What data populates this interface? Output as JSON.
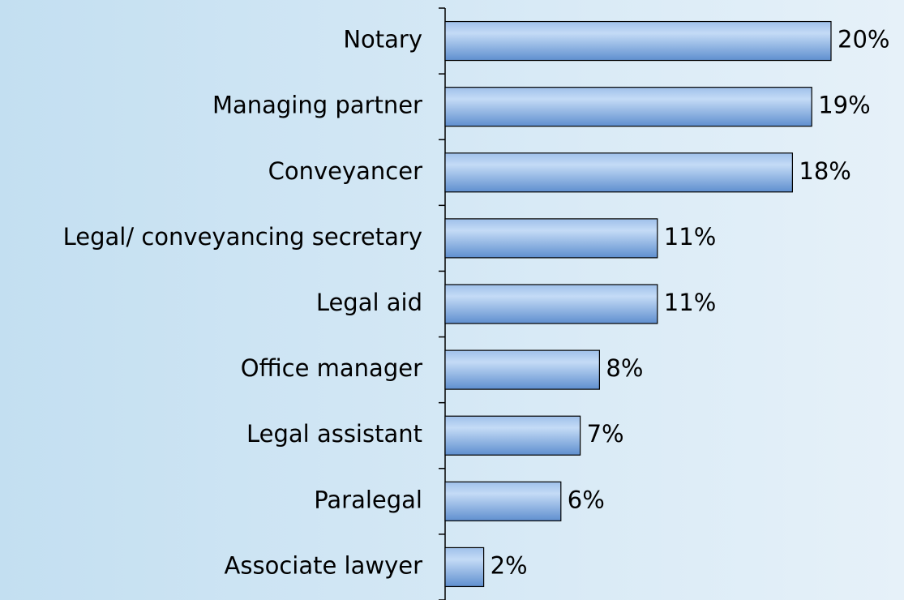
{
  "chart_data": {
    "type": "bar",
    "orientation": "horizontal",
    "categories": [
      "Notary",
      "Managing partner",
      "Conveyancer",
      "Legal/ conveyancing secretary",
      "Legal aid",
      "Office manager",
      "Legal assistant",
      "Paralegal",
      "Associate lawyer"
    ],
    "values": [
      20,
      19,
      18,
      11,
      11,
      8,
      7,
      6,
      2
    ],
    "value_labels": [
      "20%",
      "19%",
      "18%",
      "11%",
      "11%",
      "8%",
      "7%",
      "6%",
      "2%"
    ],
    "color": "#8fb6e8"
  }
}
